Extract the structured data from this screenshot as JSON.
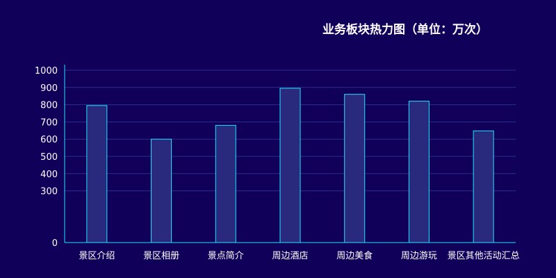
{
  "chart_data": {
    "type": "bar",
    "title": "业务板块热力图（单位：万次）",
    "categories": [
      "景区介绍",
      "景区相册",
      "景点简介",
      "周边酒店",
      "周边美食",
      "周边游玩",
      "景区其他活动汇总"
    ],
    "values": [
      795,
      600,
      680,
      895,
      860,
      820,
      648
    ],
    "ylim": [
      0,
      1000
    ],
    "yticks": [
      0,
      300,
      400,
      500,
      600,
      700,
      800,
      900,
      1000
    ],
    "grid": true,
    "colors": {
      "background": "#10005a",
      "bar_fill": "#29297e",
      "bar_stroke": "#1ee6ff",
      "axis": "#1ee6ff",
      "grid": "#2a2f8c",
      "text": "#ffffff"
    }
  }
}
